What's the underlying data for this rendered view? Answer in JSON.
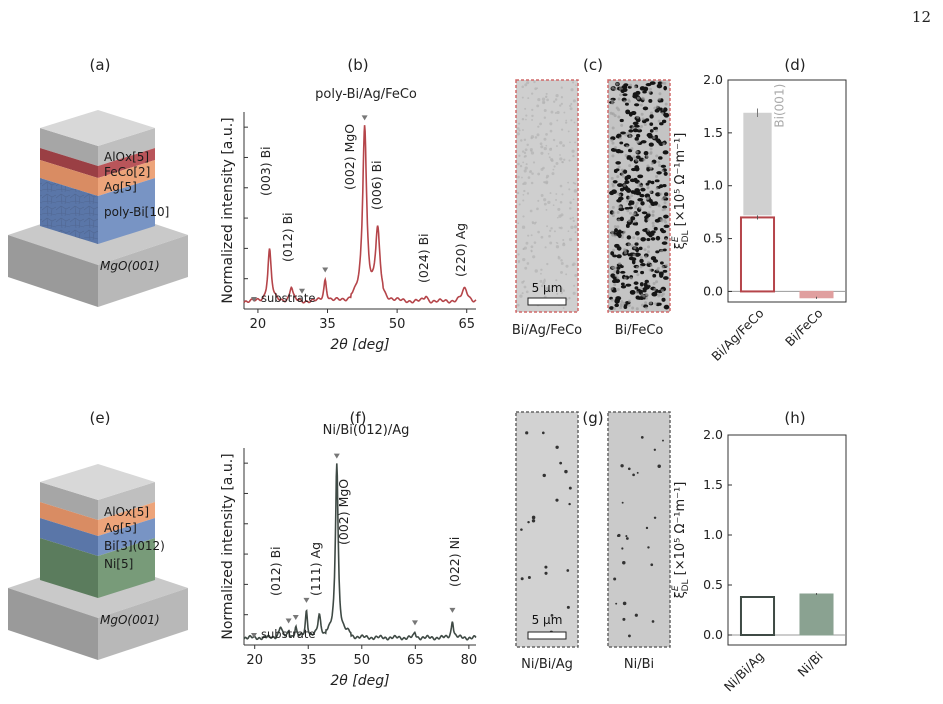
{
  "page_number": "12",
  "colors": {
    "red": "#b5454a",
    "red_light": "#e09f9f",
    "green": "#3f4a45",
    "green_bar": "#8aa291",
    "gray_bar": "#d0d0d0",
    "aloxide": "#b3b3b3",
    "feco": "#b14c50",
    "ag": "#e8a070",
    "bi": "#6a86b8",
    "ni": "#6d8f6f",
    "mgo": "#bdbdbd"
  },
  "panels": {
    "a": {
      "label": "(a)",
      "layers": [
        {
          "text": "AlOx[5]"
        },
        {
          "text": "FeCo[2]"
        },
        {
          "text": "Ag[5]"
        },
        {
          "text": "poly-Bi[10]"
        },
        {
          "text": "MgO(001)"
        }
      ]
    },
    "e": {
      "label": "(e)",
      "layers": [
        {
          "text": "AlOx[5]"
        },
        {
          "text": "Ag[5]"
        },
        {
          "text": "Bi[3](012)"
        },
        {
          "text": "Ni[5]"
        },
        {
          "text": "MgO(001)"
        }
      ]
    },
    "b": {
      "label": "(b)",
      "title": "poly-Bi/Ag/FeCo",
      "ylabel": "Normalized intensity [a.u.]",
      "xlabel": "2θ [deg]",
      "xticks": [
        "20",
        "35",
        "50",
        "65"
      ],
      "peaks": [
        "(003) Bi",
        "(012) Bi",
        "(002) MgO",
        "(006) Bi",
        "(024) Bi",
        "(220) Ag"
      ],
      "legend": "substrate"
    },
    "f": {
      "label": "(f)",
      "title": "Ni/Bi(012)/Ag",
      "ylabel": "Normalized intensity [a.u.]",
      "xlabel": "2θ [deg]",
      "xticks": [
        "20",
        "35",
        "50",
        "65",
        "80"
      ],
      "peaks": [
        "(012) Bi",
        "(111) Ag",
        "(002) MgO",
        "(022) Ni"
      ],
      "legend": "substrate"
    },
    "c": {
      "label": "(c)",
      "captions": [
        "Bi/Ag/FeCo",
        "Bi/FeCo"
      ],
      "scalebar": "5 μm"
    },
    "g": {
      "label": "(g)",
      "captions": [
        "Ni/Bi/Ag",
        "Ni/Bi"
      ],
      "scalebar": "5 μm"
    },
    "d": {
      "label": "(d)",
      "ylabel": "ξ",
      "ylabel_super": "E",
      "ylabel_sub": "DL",
      "ylabel_units": "[×10⁵ Ω⁻¹m⁻¹]",
      "yticks": [
        "0.0",
        "0.5",
        "1.0",
        "1.5",
        "2.0"
      ],
      "categories": [
        "Bi/Ag/FeCo",
        "Bi/FeCo"
      ],
      "annotation": "Bi(001)"
    },
    "h": {
      "label": "(h)",
      "ylabel": "ξ",
      "ylabel_super": "E",
      "ylabel_sub": "DL",
      "ylabel_units": "[×10⁵ Ω⁻¹m⁻¹]",
      "yticks": [
        "0.0",
        "0.5",
        "1.0",
        "1.5",
        "2.0"
      ],
      "categories": [
        "Ni/Bi/Ag",
        "Ni/Bi"
      ]
    }
  },
  "chart_data": [
    {
      "type": "line",
      "panel": "b",
      "title": "poly-Bi/Ag/FeCo",
      "xlabel": "2θ [deg]",
      "ylabel": "Normalized intensity [a.u.]",
      "xlim": [
        17,
        67
      ],
      "ylim": [
        0,
        1.1
      ],
      "peaks": [
        {
          "x": 22.5,
          "height": 0.29,
          "width": 0.45,
          "label": "(003) Bi"
        },
        {
          "x": 27.2,
          "height": 0.08,
          "width": 0.4,
          "label": "(012) Bi"
        },
        {
          "x": 34.5,
          "height": 0.12,
          "width": 0.35
        },
        {
          "x": 43.0,
          "height": 0.96,
          "width": 0.5,
          "label": "(002) MgO"
        },
        {
          "x": 45.8,
          "height": 0.37,
          "width": 0.55,
          "label": "(006) Bi"
        },
        {
          "x": 56.2,
          "height": 0.03,
          "width": 0.4,
          "label": "(024) Bi"
        },
        {
          "x": 64.6,
          "height": 0.07,
          "width": 0.8,
          "label": "(220) Ag"
        }
      ],
      "substrate_markers": [
        29.5,
        34.5,
        43.0
      ]
    },
    {
      "type": "line",
      "panel": "f",
      "title": "Ni/Bi(012)/Ag",
      "xlabel": "2θ [deg]",
      "ylabel": "Normalized intensity [a.u.]",
      "xlim": [
        17,
        82
      ],
      "ylim": [
        0,
        1.1
      ],
      "peaks": [
        {
          "x": 27.2,
          "height": 0.06,
          "width": 0.5,
          "label": "(012) Bi"
        },
        {
          "x": 29.5,
          "height": 0.035,
          "width": 0.3
        },
        {
          "x": 31.5,
          "height": 0.055,
          "width": 0.3
        },
        {
          "x": 34.5,
          "height": 0.15,
          "width": 0.35
        },
        {
          "x": 38.1,
          "height": 0.12,
          "width": 0.5,
          "label": "(111) Ag"
        },
        {
          "x": 43.0,
          "height": 0.96,
          "width": 0.45,
          "label": "(002) MgO"
        },
        {
          "x": 64.9,
          "height": 0.03,
          "width": 0.3
        },
        {
          "x": 75.4,
          "height": 0.1,
          "width": 0.35,
          "label": "(022) Ni"
        }
      ],
      "substrate_markers": [
        29.5,
        31.5,
        34.5,
        43.0,
        64.9,
        75.4
      ]
    },
    {
      "type": "bar",
      "panel": "d",
      "categories": [
        "Bi/Ag/FeCo",
        "Bi/FeCo"
      ],
      "ylim": [
        -0.1,
        2.0
      ],
      "values": [
        0.7,
        -0.06
      ],
      "overlay": {
        "category": "Bi/Ag/FeCo",
        "from": 0.72,
        "to": 1.69,
        "error": 0.04,
        "label": "Bi(001)"
      },
      "errors": [
        0.02,
        0.01
      ]
    },
    {
      "type": "bar",
      "panel": "h",
      "categories": [
        "Ni/Bi/Ag",
        "Ni/Bi"
      ],
      "ylim": [
        -0.1,
        2.0
      ],
      "values": [
        0.38,
        0.41
      ],
      "errors": [
        0.0,
        0.01
      ]
    }
  ]
}
